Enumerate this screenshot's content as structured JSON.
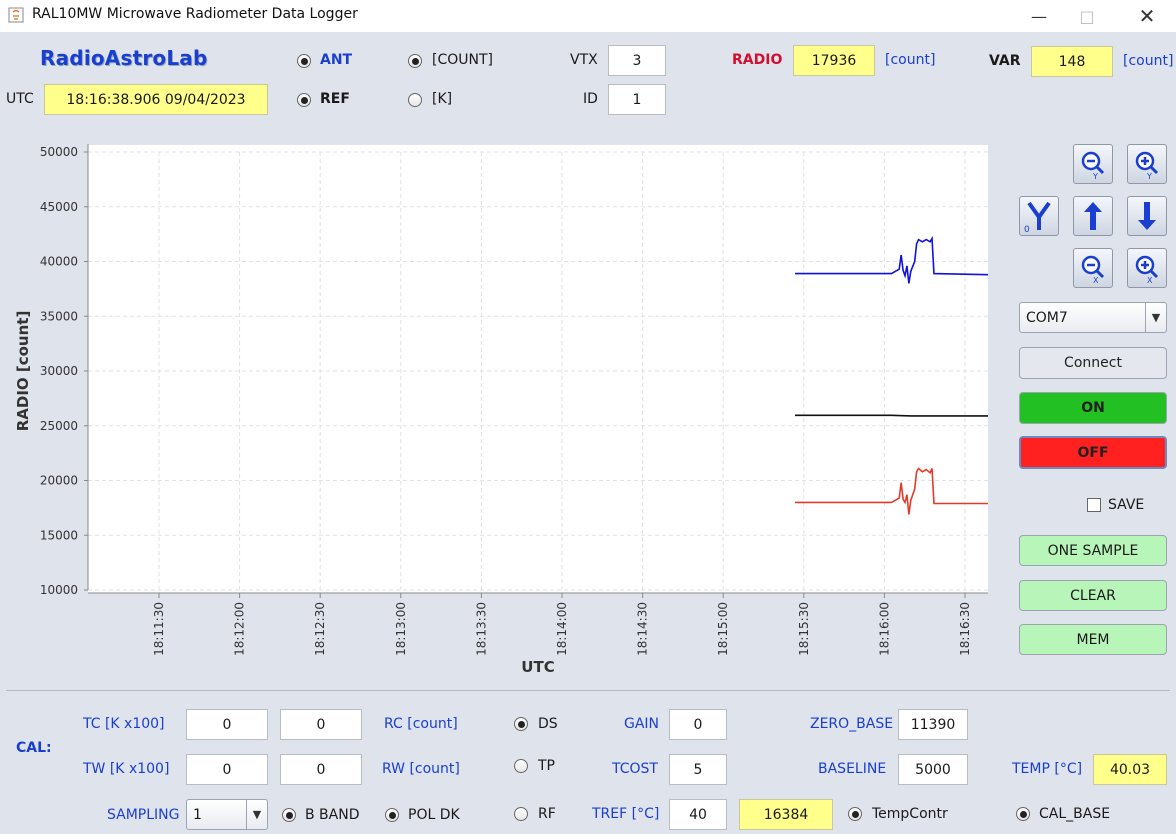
{
  "window": {
    "title": "RAL10MW Microwave Radiometer Data Logger"
  },
  "header": {
    "logo": "RadioAstroLab",
    "utc_label": "UTC",
    "utc_value": "18:16:38.906   09/04/2023",
    "ant_label": "ANT",
    "ref_label": "REF",
    "count_label": "[COUNT]",
    "k_label": "[K]",
    "vtx_label": "VTX",
    "vtx_value": "3",
    "id_label": "ID",
    "id_value": "1",
    "radio_label": "RADIO",
    "radio_value": "17936",
    "radio_unit": "[count]",
    "var_label": "VAR",
    "var_value": "148",
    "var_unit": "[count]"
  },
  "chart_data": {
    "type": "line",
    "ylabel": "RADIO [count]",
    "xlabel": "UTC",
    "ylim": [
      10000,
      50000
    ],
    "yticks": [
      "50000",
      "45000",
      "40000",
      "35000",
      "30000",
      "25000",
      "20000",
      "15000",
      "10000"
    ],
    "xticks": [
      "18:11:30",
      "18:12:00",
      "18:12:30",
      "18:13:00",
      "18:13:30",
      "18:14:00",
      "18:14:30",
      "18:15:00",
      "18:15:30",
      "18:16:00",
      "18:16:30"
    ],
    "grid": true,
    "series": [
      {
        "color": "#1010e0",
        "points": [
          [
            0,
            38900
          ],
          [
            0.5,
            38900
          ],
          [
            0.54,
            39300
          ],
          [
            0.55,
            40600
          ],
          [
            0.56,
            39200
          ],
          [
            0.57,
            38700
          ],
          [
            0.58,
            39600
          ],
          [
            0.59,
            38000
          ],
          [
            0.6,
            39100
          ],
          [
            0.62,
            40000
          ],
          [
            0.63,
            41600
          ],
          [
            0.64,
            42000
          ],
          [
            0.66,
            41800
          ],
          [
            0.68,
            42000
          ],
          [
            0.7,
            41800
          ],
          [
            0.71,
            42100
          ],
          [
            0.72,
            38900
          ],
          [
            1.0,
            38800
          ]
        ]
      },
      {
        "color": "#111111",
        "points": [
          [
            0,
            25950
          ],
          [
            0.5,
            25950
          ],
          [
            0.6,
            25900
          ],
          [
            1.0,
            25900
          ]
        ]
      },
      {
        "color": "#e33b2a",
        "points": [
          [
            0,
            18000
          ],
          [
            0.5,
            18000
          ],
          [
            0.54,
            18400
          ],
          [
            0.55,
            19800
          ],
          [
            0.56,
            18300
          ],
          [
            0.57,
            18000
          ],
          [
            0.58,
            18700
          ],
          [
            0.59,
            16900
          ],
          [
            0.6,
            18200
          ],
          [
            0.62,
            19200
          ],
          [
            0.63,
            20800
          ],
          [
            0.64,
            21100
          ],
          [
            0.66,
            20800
          ],
          [
            0.68,
            21000
          ],
          [
            0.7,
            20700
          ],
          [
            0.71,
            21100
          ],
          [
            0.72,
            17900
          ],
          [
            1.0,
            17900
          ]
        ]
      }
    ],
    "data_x_start": "18:15:27",
    "data_x_end": "18:16:40"
  },
  "side": {
    "port_value": "COM7",
    "connect_label": "Connect",
    "on_label": "ON",
    "off_label": "OFF",
    "save_label": "SAVE",
    "one_sample_label": "ONE SAMPLE",
    "clear_label": "CLEAR",
    "mem_label": "MEM",
    "on_color": "#22c022",
    "off_color": "#ff2020",
    "action_color": "#b8f5b8"
  },
  "cal": {
    "title": "CAL:",
    "tc_label": "TC [K x100]",
    "tc_value1": "0",
    "tc_value2": "0",
    "rc_label": "RC [count]",
    "tw_label": "TW [K x100]",
    "tw_value1": "0",
    "tw_value2": "0",
    "rw_label": "RW [count]",
    "ds_label": "DS",
    "tp_label": "TP",
    "rf_label": "RF",
    "gain_label": "GAIN",
    "gain_value": "0",
    "tcost_label": "TCOST",
    "tcost_value": "5",
    "tref_label": "TREF [°C]",
    "tref_value": "40",
    "tref_count": "16384",
    "tempcontr_label": "TempContr",
    "zero_base_label": "ZERO_BASE",
    "zero_base_value": "11390",
    "baseline_label": "BASELINE",
    "baseline_value": "5000",
    "temp_label": "TEMP [°C]",
    "temp_value": "40.03",
    "cal_base_label": "CAL_BASE",
    "sampling_label": "SAMPLING",
    "sampling_value": "1",
    "b_band_label": "B BAND",
    "pol_dk_label": "POL DK"
  }
}
